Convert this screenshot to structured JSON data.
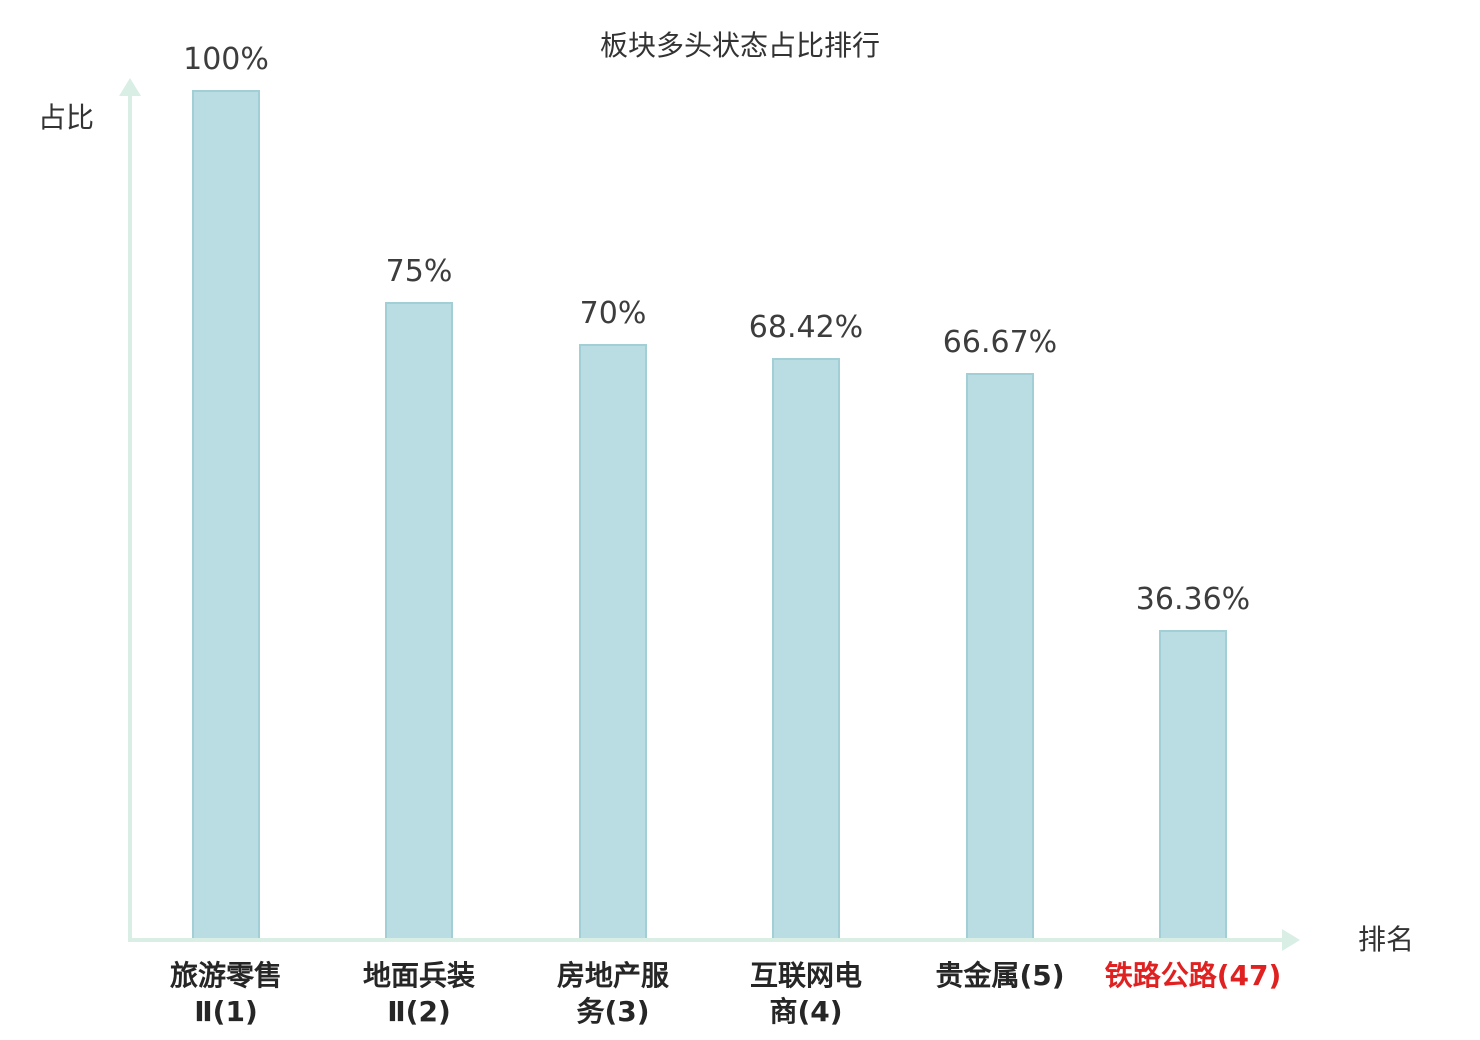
{
  "chart_data": {
    "type": "bar",
    "title": "板块多头状态占比排行",
    "ylabel": "占比",
    "xlabel": "排名",
    "categories": [
      "旅游零售Ⅱ(1)",
      "地面兵装Ⅱ(2)",
      "房地产服务(3)",
      "互联网电商(4)",
      "贵金属(5)",
      "铁路公路(47)"
    ],
    "category_lines": [
      [
        "旅游零售",
        "Ⅱ(1)"
      ],
      [
        "地面兵装",
        "Ⅱ(2)"
      ],
      [
        "房地产服",
        "务(3)"
      ],
      [
        "互联网电",
        "商(4)"
      ],
      [
        "贵金属(5)"
      ],
      [
        "铁路公路(47)"
      ]
    ],
    "values": [
      100,
      75,
      70,
      68.42,
      66.67,
      36.36
    ],
    "value_labels": [
      "100%",
      "75%",
      "70%",
      "68.42%",
      "66.67%",
      "36.36%"
    ],
    "ylim": [
      0,
      100
    ],
    "grid": false,
    "legend": false,
    "highlight_index": 5,
    "highlight_color": "#e02121",
    "bar_color": "#b9dde2",
    "bar_border_color": "#a2cfd6",
    "axis_color": "#d9efe6",
    "value_text_color": "#3d3d3d",
    "category_text_color": "#262626",
    "title_text_color": "#333333"
  }
}
